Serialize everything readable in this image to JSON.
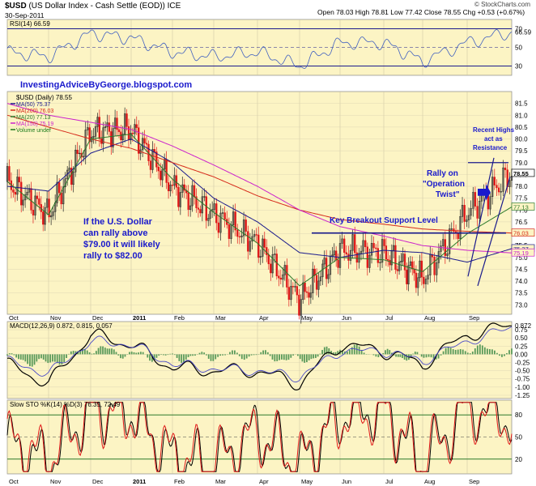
{
  "header": {
    "symbol": "$USD",
    "description": "(US Dollar Index - Cash Settle (EOD))",
    "exchange": "ICE",
    "date": "30-Sep-2011",
    "quote": "Open 78.03  High 78.81  Low 77.42  Close 78.55  Chg +0.53 (+0.67%)",
    "watermark": "© StockCharts.com"
  },
  "rsi_legend": "RSI(14) 66.59",
  "price_legend": {
    "title": "$USD (Daily) 78.55",
    "items": [
      {
        "text": "MA(50) 75.37",
        "color": "#1a1a8c"
      },
      {
        "text": "MA(200) 76.03",
        "color": "#d62a1a"
      },
      {
        "text": "MA(20) 77.13",
        "color": "#2c7a2c"
      },
      {
        "text": "MA(150) 75.19",
        "color": "#cc22cc"
      },
      {
        "text": "Volume undef",
        "color": "#1a7a1a"
      }
    ]
  },
  "macd_legend": "MACD(12,26,9) 0.872, 0.815, 0.057",
  "sto_legend": "Slow STO %K(14) %D(3) 76.35, 72.49",
  "annotations": {
    "site": "InvestingAdviceByGeorge.blogspot.com",
    "dollar_1": "If the U.S. Dollar",
    "dollar_2": "can rally above",
    "dollar_3": "$79.00 it will likely",
    "dollar_4": "rally to $82.00",
    "support": "Key Breakout Support Level",
    "twist_1": "Rally on",
    "twist_2": "\"Operation",
    "twist_3": "Twist\"",
    "highs_1": "Recent Highs",
    "highs_2": "act as",
    "highs_3": "Resistance"
  },
  "months": [
    "Oct",
    "Nov",
    "Dec",
    "2011",
    "Feb",
    "Mar",
    "Apr",
    "May",
    "Jun",
    "Jul",
    "Aug",
    "Sep"
  ],
  "colors": {
    "panel_bg": "#fcf4c4",
    "up": "#222222",
    "down": "#e01818",
    "ma50": "#1a1a8c",
    "ma200": "#d62a1a",
    "ma20": "#2c7a2c",
    "ma150": "#cc22cc",
    "annot": "#1a1acc"
  },
  "chart_data": [
    {
      "type": "line",
      "name": "RSI(14)",
      "title": "RSI(14) 66.59",
      "y_ticks": [
        "70",
        "50",
        "30"
      ],
      "ylim": [
        20,
        80
      ],
      "last_value": 66.59,
      "x": [
        "Oct",
        "Nov",
        "Dec",
        "2011",
        "Feb",
        "Mar",
        "Apr",
        "May",
        "Jun",
        "Jul",
        "Aug",
        "Sep",
        "Oct"
      ],
      "values": [
        45,
        40,
        65,
        60,
        45,
        40,
        45,
        30,
        55,
        55,
        35,
        55,
        66.59
      ]
    },
    {
      "type": "candlestick",
      "title": "$USD (Daily) 78.55",
      "y_ticks": [
        "81.5",
        "81.0",
        "80.5",
        "80.0",
        "79.5",
        "79.0",
        "78.5",
        "78.0",
        "77.5",
        "77.0",
        "76.5",
        "76.0",
        "75.5",
        "75.0",
        "74.5",
        "74.0",
        "73.5",
        "73.0"
      ],
      "ylim": [
        72.6,
        82.0
      ],
      "last_value": 78.55,
      "price_labels": [
        "78.55",
        "77.13",
        "76.03",
        "75.37",
        "75.19"
      ],
      "x": [
        "Oct",
        "Nov",
        "Dec",
        "2011",
        "Feb",
        "Mar",
        "Apr",
        "May",
        "Jun",
        "Jul",
        "Aug",
        "Sep",
        "Oct"
      ],
      "close": [
        78.2,
        76.8,
        80.3,
        80.4,
        78.0,
        76.8,
        75.6,
        73.2,
        75.3,
        75.2,
        74.1,
        76.9,
        78.55
      ],
      "series": [
        {
          "name": "MA(50) 75.37",
          "values": [
            78.0,
            77.8,
            79.4,
            80.0,
            79.0,
            77.5,
            76.5,
            75.2,
            75.0,
            75.3,
            75.2,
            74.8,
            75.37
          ]
        },
        {
          "name": "MA(200) 76.03",
          "values": [
            81.0,
            80.5,
            80.0,
            79.6,
            79.0,
            78.4,
            77.6,
            77.0,
            76.6,
            76.4,
            76.2,
            76.1,
            76.03
          ]
        },
        {
          "name": "MA(20) 77.13",
          "values": [
            78.2,
            76.8,
            80.0,
            80.2,
            78.3,
            76.9,
            75.6,
            73.8,
            75.0,
            74.9,
            74.4,
            76.0,
            77.13
          ]
        },
        {
          "name": "MA(150) 75.19",
          "values": [
            81.5,
            81.0,
            80.7,
            80.4,
            79.7,
            78.9,
            78.0,
            77.0,
            76.3,
            75.9,
            75.5,
            75.3,
            75.19
          ]
        }
      ],
      "support_level": 76.03,
      "resistance_level": 79.0
    },
    {
      "type": "line",
      "name": "MACD(12,26,9)",
      "title": "MACD(12,26,9) 0.872, 0.815, 0.057",
      "y_ticks": [
        "0.872",
        "0.75",
        "0.50",
        "0.25",
        "0.00",
        "-0.25",
        "-0.50",
        "-0.75",
        "-1.00",
        "-1.25"
      ],
      "ylim": [
        -1.35,
        1.0
      ],
      "x": [
        "Oct",
        "Nov",
        "Dec",
        "2011",
        "Feb",
        "Mar",
        "Apr",
        "May",
        "Jun",
        "Jul",
        "Aug",
        "Sep",
        "Oct"
      ],
      "series": [
        {
          "name": "MACD",
          "values": [
            -0.3,
            -0.9,
            0.6,
            0.3,
            -0.4,
            -0.5,
            -0.5,
            -0.9,
            0.3,
            0.1,
            -0.3,
            0.6,
            0.872
          ]
        },
        {
          "name": "Signal",
          "values": [
            -0.2,
            -0.6,
            0.4,
            0.3,
            -0.3,
            -0.45,
            -0.5,
            -0.7,
            0.1,
            0.1,
            -0.2,
            0.4,
            0.815
          ]
        },
        {
          "name": "Histogram",
          "values": [
            -0.1,
            -0.3,
            0.2,
            0.0,
            -0.1,
            -0.05,
            0.0,
            -0.2,
            0.2,
            0.0,
            -0.1,
            0.2,
            0.057
          ]
        }
      ]
    },
    {
      "type": "line",
      "name": "Slow STO",
      "title": "Slow STO %K(14) %D(3) 76.35, 72.49",
      "y_ticks": [
        "80",
        "50",
        "20"
      ],
      "ylim": [
        0,
        100
      ],
      "x": [
        "Oct",
        "Nov",
        "Dec",
        "2011",
        "Feb",
        "Mar",
        "Apr",
        "May",
        "Jun",
        "Jul",
        "Aug",
        "Sep",
        "Oct"
      ],
      "series": [
        {
          "name": "%K",
          "values": [
            40,
            15,
            90,
            85,
            20,
            10,
            60,
            10,
            80,
            90,
            10,
            95,
            76.35
          ]
        },
        {
          "name": "%D",
          "values": [
            45,
            20,
            85,
            80,
            25,
            15,
            55,
            15,
            75,
            85,
            15,
            90,
            72.49
          ]
        }
      ]
    }
  ]
}
